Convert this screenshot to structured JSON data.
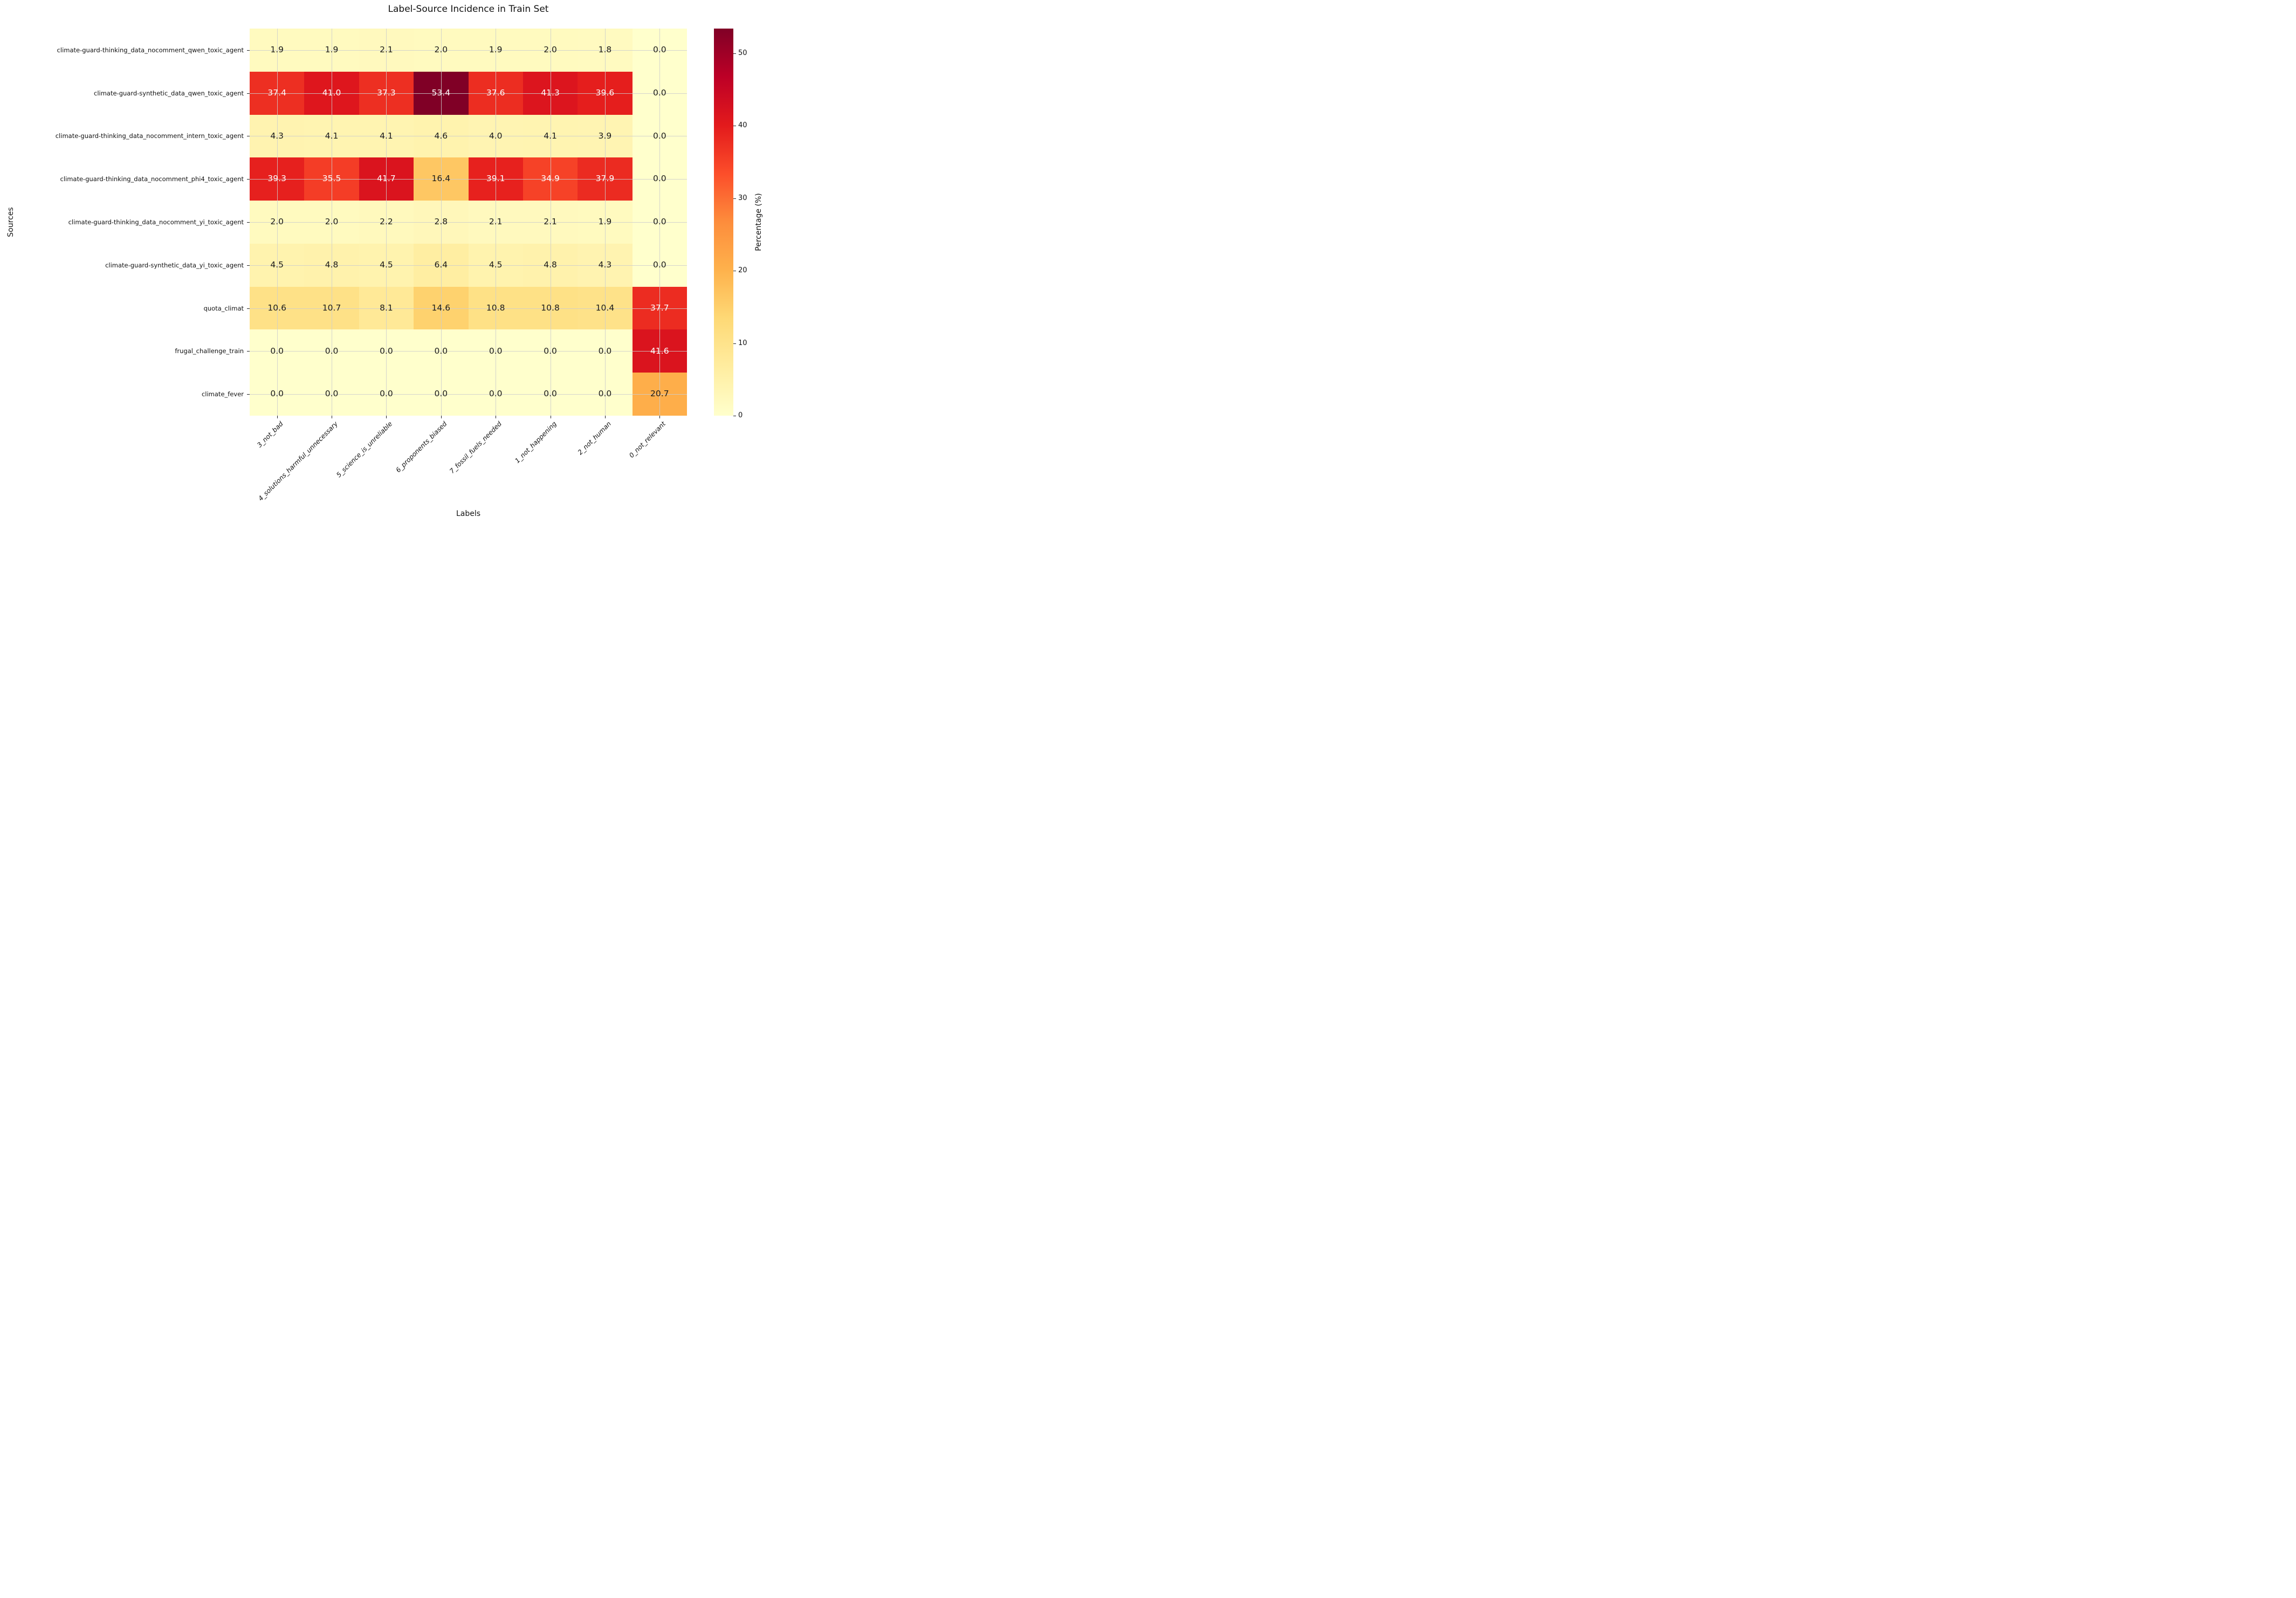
{
  "chart_data": {
    "type": "heatmap",
    "title": "Label-Source Incidence in Train Set",
    "xlabel": "Labels",
    "ylabel": "Sources",
    "x_categories": [
      "3_not_bad",
      "4_solutions_harmful_unnecessary",
      "5_science_is_unreliable",
      "6_proponents_biased",
      "7_fossil_fuels_needed",
      "1_not_happening",
      "2_not_human",
      "0_not_relevant"
    ],
    "y_categories": [
      "climate-guard-thinking_data_nocomment_qwen_toxic_agent",
      "climate-guard-synthetic_data_qwen_toxic_agent",
      "climate-guard-thinking_data_nocomment_intern_toxic_agent",
      "climate-guard-thinking_data_nocomment_phi4_toxic_agent",
      "climate-guard-thinking_data_nocomment_yi_toxic_agent",
      "climate-guard-synthetic_data_yi_toxic_agent",
      "quota_climat",
      "frugal_challenge_train",
      "climate_fever"
    ],
    "values": [
      [
        1.9,
        1.9,
        2.1,
        2.0,
        1.9,
        2.0,
        1.8,
        0.0
      ],
      [
        37.4,
        41.0,
        37.3,
        53.4,
        37.6,
        41.3,
        39.6,
        0.0
      ],
      [
        4.3,
        4.1,
        4.1,
        4.6,
        4.0,
        4.1,
        3.9,
        0.0
      ],
      [
        39.3,
        35.5,
        41.7,
        16.4,
        39.1,
        34.9,
        37.9,
        0.0
      ],
      [
        2.0,
        2.0,
        2.2,
        2.8,
        2.1,
        2.1,
        1.9,
        0.0
      ],
      [
        4.5,
        4.8,
        4.5,
        6.4,
        4.5,
        4.8,
        4.3,
        0.0
      ],
      [
        10.6,
        10.7,
        8.1,
        14.6,
        10.8,
        10.8,
        10.4,
        37.7
      ],
      [
        0.0,
        0.0,
        0.0,
        0.0,
        0.0,
        0.0,
        0.0,
        41.6
      ],
      [
        0.0,
        0.0,
        0.0,
        0.0,
        0.0,
        0.0,
        0.0,
        20.7
      ]
    ],
    "vmin": 0,
    "vmax": 53.4,
    "grid": true,
    "annotation_decimals": 1,
    "annotation_colors": {
      "light": "#ffffff",
      "dark": "#1a1a1a"
    },
    "colormap": {
      "name": "YlOrRd",
      "stops": [
        "#ffffcc",
        "#ffeda0",
        "#fed976",
        "#feb24c",
        "#fd8d3c",
        "#fc4e2a",
        "#e31a1c",
        "#bd0026",
        "#800026"
      ]
    },
    "colorbar": {
      "label": "Percentage (%)",
      "ticks": [
        0,
        10,
        20,
        30,
        40,
        50
      ]
    }
  }
}
